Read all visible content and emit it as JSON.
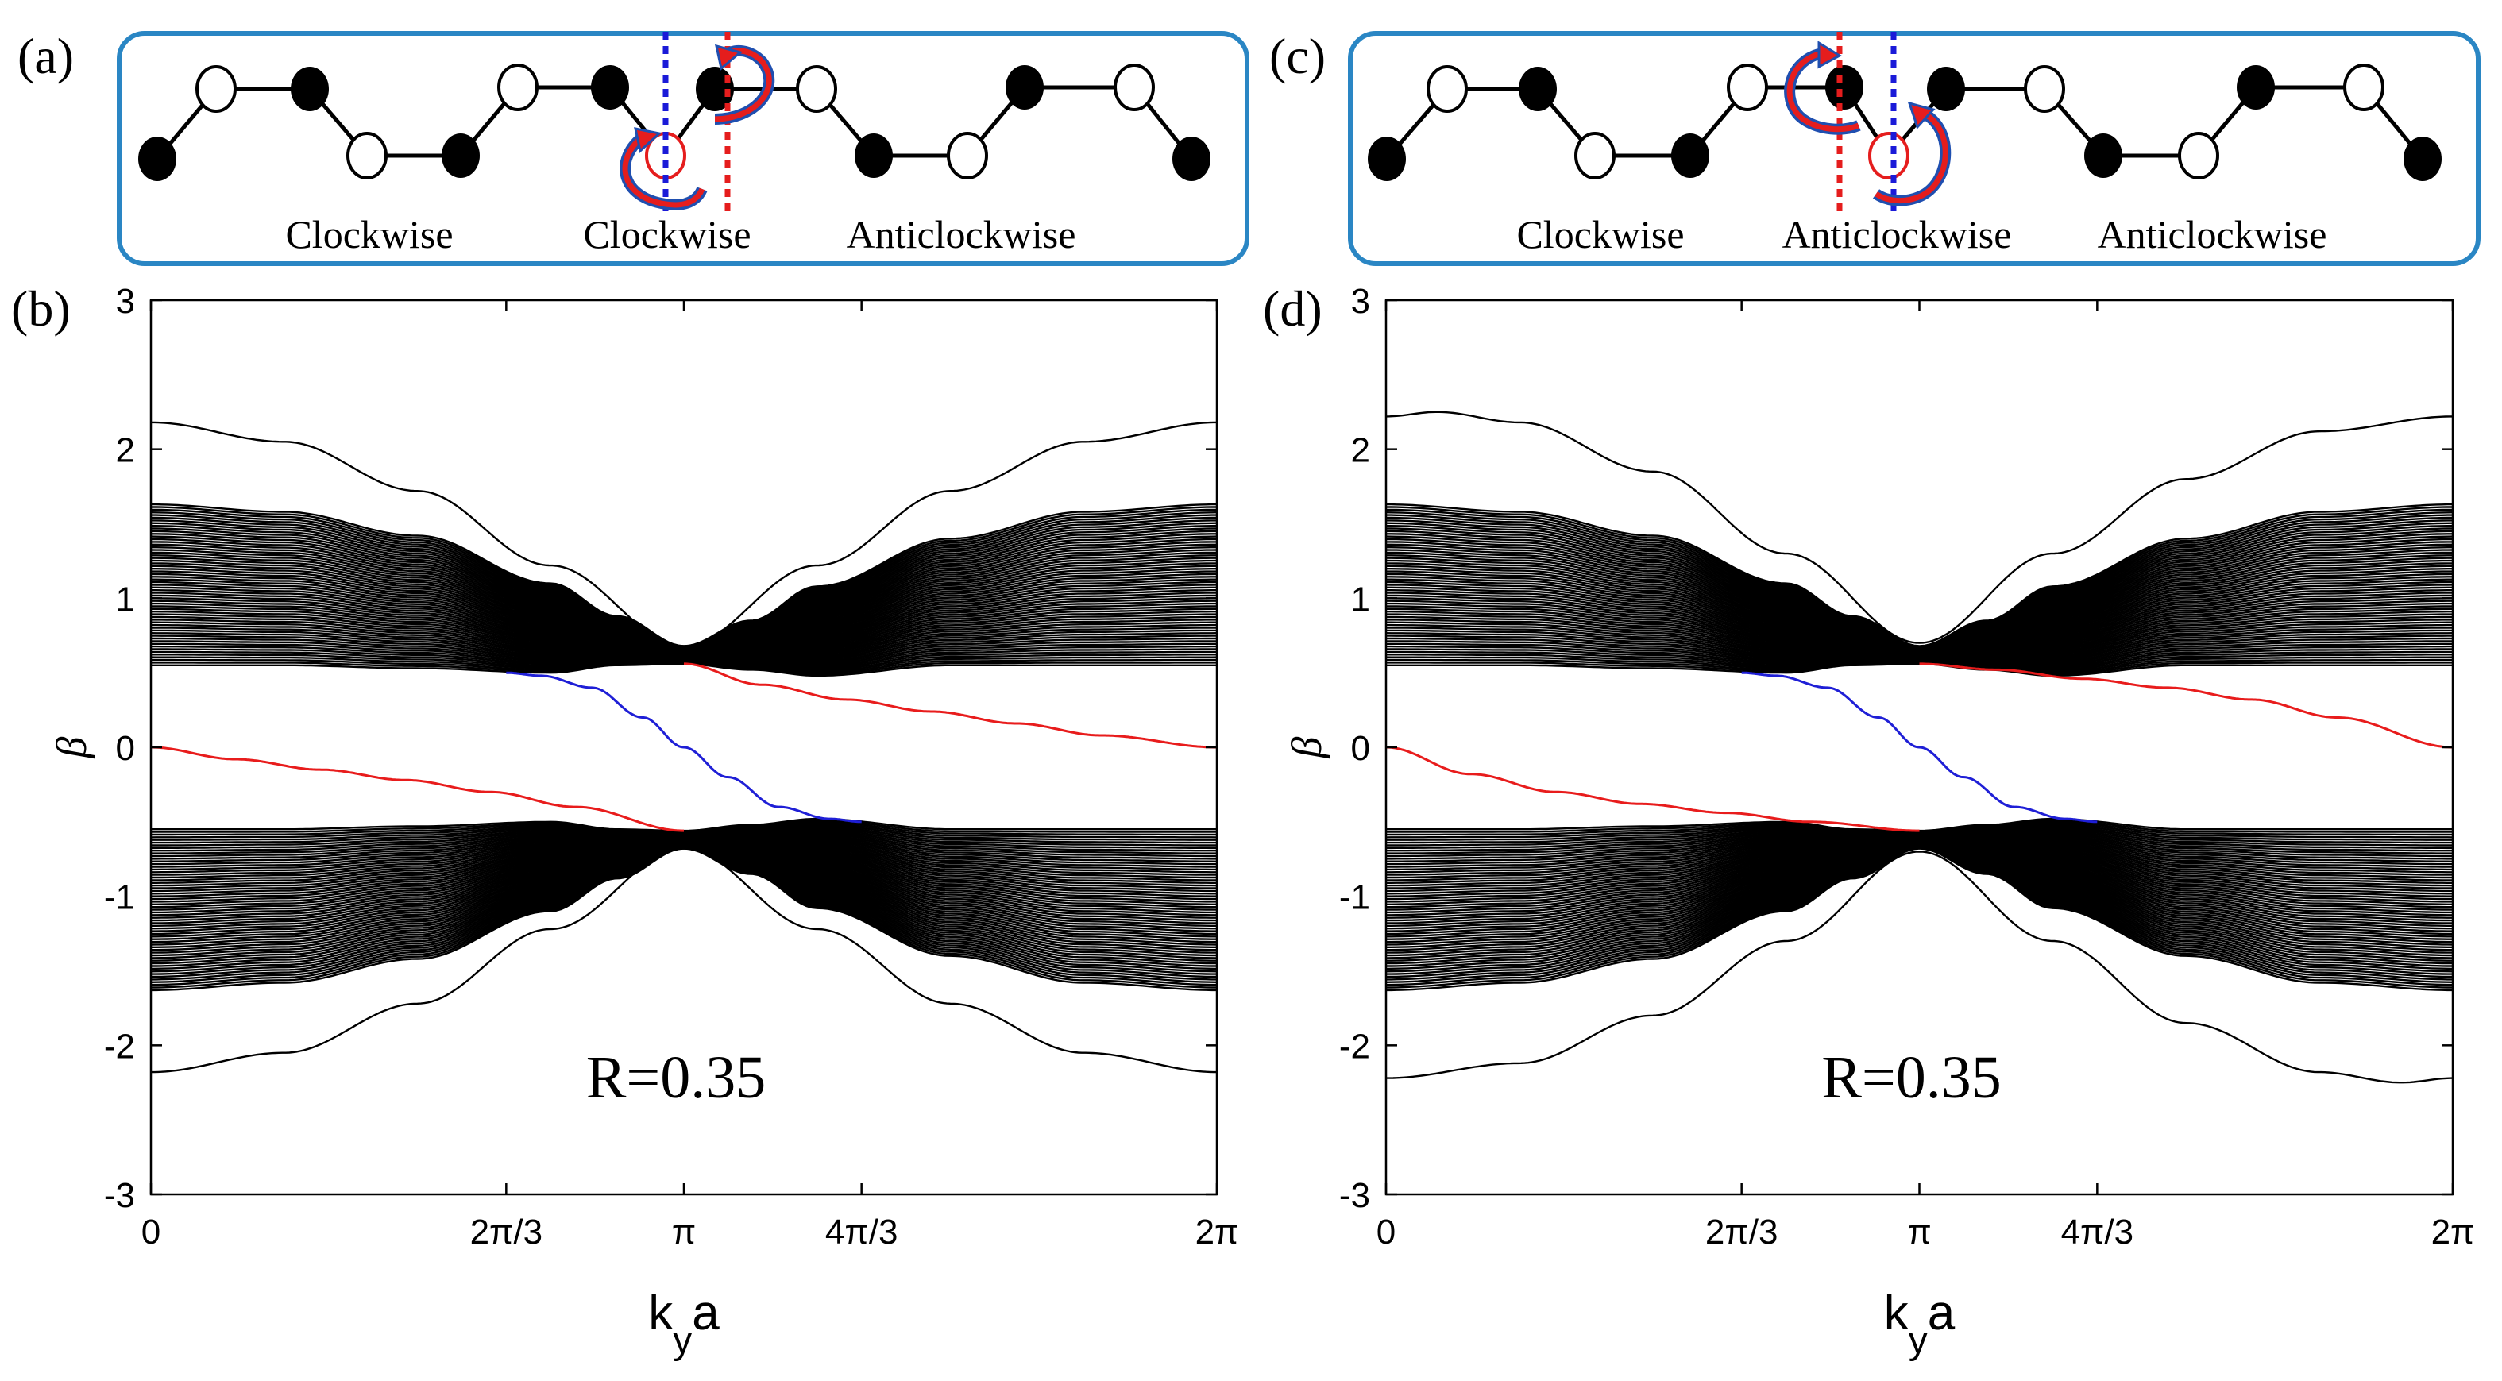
{
  "panels": {
    "a": {
      "label": "(a)",
      "texts": [
        "Clockwise",
        "Clockwise",
        "Anticlockwise"
      ]
    },
    "b": {
      "label": "(b)"
    },
    "c": {
      "label": "(c)",
      "texts": [
        "Clockwise",
        "Anticlockwise",
        "Anticlockwise"
      ]
    },
    "d": {
      "label": "(d)"
    }
  },
  "colors": {
    "bulk": "#000000",
    "edge_blue": "#1f1fd6",
    "edge_red": "#e81c1c",
    "box_border": "#2a86c4",
    "dashed_blue": "#1a1ad8",
    "dashed_red": "#e51d1d",
    "arrow_red": "#e51d1d",
    "arrow_blue": "#1f4fb0"
  },
  "chart_data": [
    {
      "panel": "b",
      "type": "line",
      "annotation": "R=0.35",
      "xlabel": "k",
      "xlabel_sub": "y",
      "xlabel_tail": "a",
      "ylabel": "β",
      "xlim": [
        0,
        6.2832
      ],
      "ylim": [
        -3,
        3
      ],
      "xticks": [
        0,
        2.0944,
        3.1416,
        4.1888,
        6.2832
      ],
      "xticklabels": [
        "0",
        "2π/3",
        "π",
        "4π/3",
        "2π"
      ],
      "yticks": [
        -3,
        -2,
        -1,
        0,
        1,
        2,
        3
      ],
      "yticklabels": [
        "-3",
        "-2",
        "-1",
        "0",
        "1",
        "2",
        "3"
      ],
      "bulk_bands": {
        "outer_edge_x": [
          0,
          0.785,
          1.571,
          2.356,
          2.749,
          3.1416,
          3.534,
          3.927,
          4.712,
          5.498,
          6.2832
        ],
        "upper_band_top": [
          1.63,
          1.58,
          1.42,
          1.1,
          0.88,
          0.68,
          0.85,
          1.08,
          1.4,
          1.58,
          1.63
        ],
        "upper_band_bottom": [
          0.55,
          0.55,
          0.53,
          0.5,
          0.55,
          0.56,
          0.52,
          0.48,
          0.55,
          0.55,
          0.55
        ],
        "lower_band_top": [
          -0.55,
          -0.55,
          -0.53,
          -0.5,
          -0.55,
          -0.56,
          -0.52,
          -0.48,
          -0.55,
          -0.55,
          -0.55
        ],
        "lower_band_bottom": [
          -1.63,
          -1.58,
          -1.42,
          -1.1,
          -0.88,
          -0.68,
          -0.85,
          -1.08,
          -1.4,
          -1.58,
          -1.63
        ]
      },
      "series": [
        {
          "kind": "outer",
          "color": "#000000",
          "x": [
            0,
            0.785,
            1.571,
            2.356,
            3.1416,
            3.927,
            4.712,
            5.498,
            6.2832
          ],
          "y": [
            2.18,
            2.05,
            1.72,
            1.22,
            0.68,
            1.22,
            1.72,
            2.05,
            2.18
          ]
        },
        {
          "kind": "outer",
          "color": "#000000",
          "x": [
            0,
            0.785,
            1.571,
            2.356,
            3.1416,
            3.927,
            4.712,
            5.498,
            6.2832
          ],
          "y": [
            -2.18,
            -2.05,
            -1.72,
            -1.22,
            -0.68,
            -1.22,
            -1.72,
            -2.05,
            -2.18
          ]
        },
        {
          "kind": "edge",
          "color": "#1f1fd6",
          "x": [
            2.0944,
            2.3,
            2.6,
            2.9,
            3.1416,
            3.4,
            3.7,
            4.0,
            4.1888
          ],
          "y": [
            0.5,
            0.48,
            0.4,
            0.2,
            0.0,
            -0.2,
            -0.4,
            -0.48,
            -0.5
          ]
        },
        {
          "kind": "edge",
          "color": "#e81c1c",
          "x": [
            0,
            0.5,
            1.0,
            1.5,
            2.0,
            2.5,
            3.1416
          ],
          "y": [
            0.0,
            -0.08,
            -0.15,
            -0.22,
            -0.3,
            -0.4,
            -0.56
          ]
        },
        {
          "kind": "edge",
          "color": "#e81c1c",
          "x": [
            3.1416,
            3.6,
            4.1,
            4.6,
            5.1,
            5.6,
            6.2832
          ],
          "y": [
            0.56,
            0.42,
            0.32,
            0.24,
            0.16,
            0.08,
            0.0
          ]
        }
      ]
    },
    {
      "panel": "d",
      "type": "line",
      "annotation": "R=0.35",
      "xlabel": "k",
      "xlabel_sub": "y",
      "xlabel_tail": "a",
      "ylabel": "β",
      "xlim": [
        0,
        6.2832
      ],
      "ylim": [
        -3,
        3
      ],
      "xticks": [
        0,
        2.0944,
        3.1416,
        4.1888,
        6.2832
      ],
      "xticklabels": [
        "0",
        "2π/3",
        "π",
        "4π/3",
        "2π"
      ],
      "yticks": [
        -3,
        -2,
        -1,
        0,
        1,
        2,
        3
      ],
      "yticklabels": [
        "-3",
        "-2",
        "-1",
        "0",
        "1",
        "2",
        "3"
      ],
      "bulk_bands": {
        "outer_edge_x": [
          0,
          0.785,
          1.571,
          2.356,
          2.749,
          3.1416,
          3.534,
          3.927,
          4.712,
          5.498,
          6.2832
        ],
        "upper_band_top": [
          1.63,
          1.58,
          1.42,
          1.1,
          0.88,
          0.68,
          0.85,
          1.08,
          1.4,
          1.58,
          1.63
        ],
        "upper_band_bottom": [
          0.55,
          0.55,
          0.53,
          0.5,
          0.55,
          0.56,
          0.52,
          0.48,
          0.55,
          0.55,
          0.55
        ],
        "lower_band_top": [
          -0.55,
          -0.55,
          -0.53,
          -0.5,
          -0.55,
          -0.56,
          -0.52,
          -0.48,
          -0.55,
          -0.55,
          -0.55
        ],
        "lower_band_bottom": [
          -1.63,
          -1.58,
          -1.42,
          -1.1,
          -0.88,
          -0.68,
          -0.85,
          -1.08,
          -1.4,
          -1.58,
          -1.63
        ]
      },
      "series": [
        {
          "kind": "outer",
          "color": "#000000",
          "x": [
            0,
            0.3,
            0.785,
            1.571,
            2.356,
            3.1416,
            3.927,
            4.712,
            5.498,
            6.2832
          ],
          "y": [
            2.22,
            2.25,
            2.18,
            1.85,
            1.3,
            0.7,
            1.3,
            1.8,
            2.12,
            2.22
          ]
        },
        {
          "kind": "outer",
          "color": "#000000",
          "x": [
            0,
            0.785,
            1.571,
            2.356,
            3.1416,
            3.927,
            4.712,
            5.498,
            5.98,
            6.2832
          ],
          "y": [
            -2.22,
            -2.12,
            -1.8,
            -1.3,
            -0.7,
            -1.3,
            -1.85,
            -2.18,
            -2.25,
            -2.22
          ]
        },
        {
          "kind": "edge",
          "color": "#1f1fd6",
          "x": [
            2.0944,
            2.3,
            2.6,
            2.9,
            3.1416,
            3.4,
            3.7,
            4.0,
            4.1888
          ],
          "y": [
            0.5,
            0.48,
            0.4,
            0.2,
            0.0,
            -0.2,
            -0.4,
            -0.48,
            -0.5
          ]
        },
        {
          "kind": "edge",
          "color": "#e81c1c",
          "x": [
            0,
            0.5,
            1.0,
            1.5,
            2.0,
            2.5,
            3.1416
          ],
          "y": [
            0.0,
            -0.18,
            -0.3,
            -0.38,
            -0.44,
            -0.5,
            -0.56
          ]
        },
        {
          "kind": "edge",
          "color": "#e81c1c",
          "x": [
            3.1416,
            3.6,
            4.1,
            4.6,
            5.1,
            5.6,
            6.2832
          ],
          "y": [
            0.56,
            0.52,
            0.46,
            0.4,
            0.32,
            0.2,
            0.0
          ]
        }
      ]
    }
  ]
}
